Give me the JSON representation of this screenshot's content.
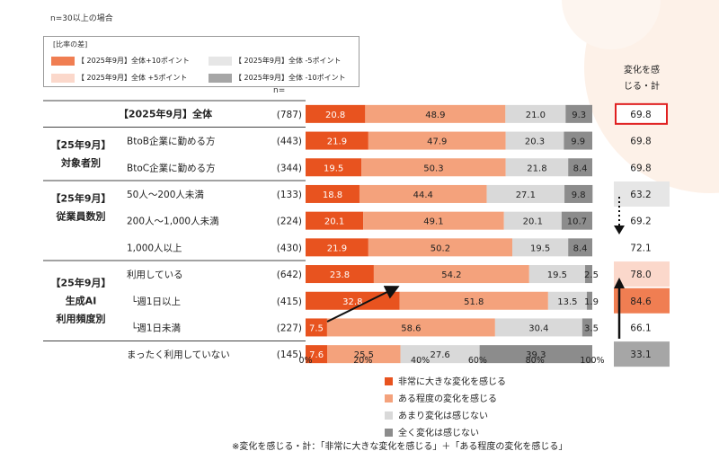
{
  "note": "n=30以上の場合",
  "diff_legend": {
    "title": "[比率の差]",
    "items": [
      {
        "label": "【 2025年9月】全体+10ポイント",
        "color": "#f07e52"
      },
      {
        "label": "【 2025年9月】全体 -5ポイント",
        "color": "#e6e6e6"
      },
      {
        "label": "【 2025年9月】全体 +5ポイント",
        "color": "#fbd8cb"
      },
      {
        "label": "【 2025年9月】全体 -10ポイント",
        "color": "#a6a6a6"
      }
    ]
  },
  "n_header": "n=",
  "side_header": [
    "変化を感",
    "じる・計"
  ],
  "footnote": "※変化を感じる・計：「非常に大きな変化を感じる」＋「ある程度の変化を感じる」",
  "colors": {
    "very": "#e8531f",
    "some": "#f4a27c",
    "little": "#d9d9d9",
    "none": "#8c8c8c",
    "highlight_border": "#e02020"
  },
  "chart_data": {
    "type": "bar",
    "orientation": "horizontal",
    "stacked": true,
    "xlim": [
      0,
      100
    ],
    "xticks": [
      "0%",
      "20%",
      "40%",
      "60%",
      "80%",
      "100%"
    ],
    "groups": [
      {
        "label": [
          "【2025年9月】全体"
        ],
        "rows": [
          0
        ]
      },
      {
        "label": [
          "【25年9月】",
          "対象者別"
        ],
        "rows": [
          1,
          2
        ]
      },
      {
        "label": [
          "【25年9月】",
          "従業員数別"
        ],
        "rows": [
          3,
          4,
          5
        ]
      },
      {
        "label": [
          "【25年9月】",
          "生成AI",
          "利用頻度別"
        ],
        "rows": [
          6,
          7,
          8,
          9
        ]
      }
    ],
    "categories": [
      "【2025年9月】全体",
      "BtoB企業に勤める方",
      "BtoC企業に勤める方",
      "50人～200人未満",
      "200人～1,000人未満",
      "1,000人以上",
      "利用している",
      "└週1日以上",
      "└週1日未満",
      "まったく利用していない"
    ],
    "n": [
      "(787)",
      "(443)",
      "(344)",
      "(133)",
      "(224)",
      "(430)",
      "(642)",
      "(415)",
      "(227)",
      "(145)"
    ],
    "series": [
      {
        "name": "非常に大きな変化を感じる",
        "values": [
          20.8,
          21.9,
          19.5,
          18.8,
          20.1,
          21.9,
          23.8,
          32.8,
          7.5,
          7.6
        ]
      },
      {
        "name": "ある程度の変化を感じる",
        "values": [
          48.9,
          47.9,
          50.3,
          44.4,
          49.1,
          50.2,
          54.2,
          51.8,
          58.6,
          25.5
        ]
      },
      {
        "name": "あまり変化は感じない",
        "values": [
          21.0,
          20.3,
          21.8,
          27.1,
          20.1,
          19.5,
          19.5,
          13.5,
          30.4,
          27.6
        ]
      },
      {
        "name": "全く変化は感じない",
        "values": [
          9.3,
          9.9,
          8.4,
          9.8,
          10.7,
          8.4,
          2.5,
          1.9,
          3.5,
          39.3
        ]
      }
    ],
    "total": {
      "values": [
        "69.8",
        "69.8",
        "69.8",
        "63.2",
        "69.2",
        "72.1",
        "78.0",
        "84.6",
        "66.1",
        "33.1"
      ],
      "shading": [
        "highlight",
        "",
        "",
        "-5",
        "",
        "",
        "+5",
        "+10",
        "",
        "-10"
      ]
    }
  }
}
